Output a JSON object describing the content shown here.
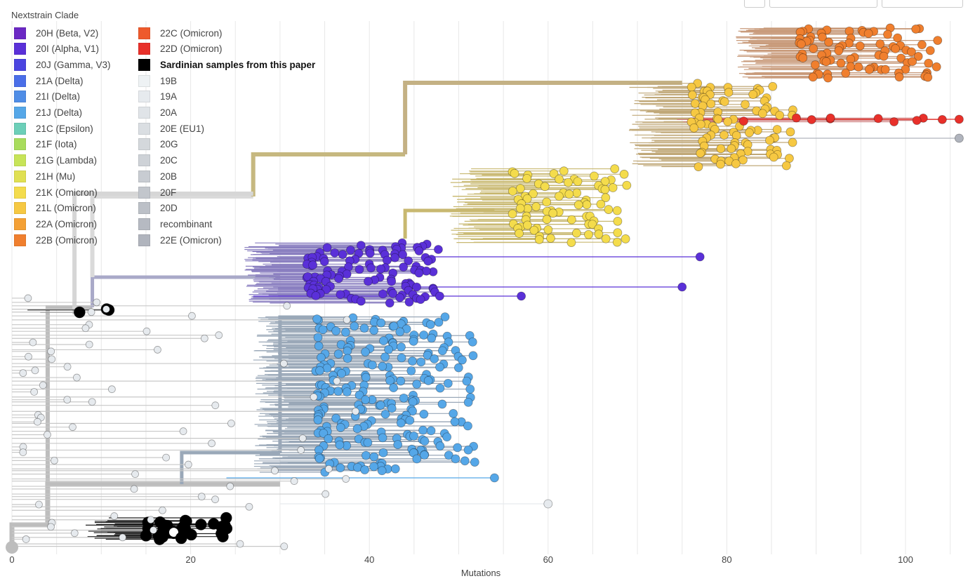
{
  "legend": {
    "title": "Nextstrain Clade",
    "items": [
      {
        "label": "20H (Beta, V2)",
        "color": "#6b28c4"
      },
      {
        "label": "20I (Alpha, V1)",
        "color": "#5a30d8"
      },
      {
        "label": "20J (Gamma, V3)",
        "color": "#4a44e0"
      },
      {
        "label": "21A (Delta)",
        "color": "#4a6ee8"
      },
      {
        "label": "21I (Delta)",
        "color": "#4f8de6"
      },
      {
        "label": "21J (Delta)",
        "color": "#55a7e8"
      },
      {
        "label": "21C (Epsilon)",
        "color": "#6ccfb8"
      },
      {
        "label": "21F (Iota)",
        "color": "#a8dc5c"
      },
      {
        "label": "21G (Lambda)",
        "color": "#c7e458"
      },
      {
        "label": "21H (Mu)",
        "color": "#e0e052"
      },
      {
        "label": "21K (Omicron)",
        "color": "#f4dc4c"
      },
      {
        "label": "21L (Omicron)",
        "color": "#f6c842"
      },
      {
        "label": "22A (Omicron)",
        "color": "#f4a034"
      },
      {
        "label": "22B (Omicron)",
        "color": "#f07f2e"
      },
      {
        "label": "22C (Omicron)",
        "color": "#ee5a2c"
      },
      {
        "label": "22D (Omicron)",
        "color": "#e8302a"
      },
      {
        "label": "Sardinian samples from this paper",
        "color": "#000000",
        "bold": true
      },
      {
        "label": "19B",
        "color": "#eef2f4"
      },
      {
        "label": "19A",
        "color": "#e6eaee"
      },
      {
        "label": "20A",
        "color": "#e0e4e8"
      },
      {
        "label": "20E (EU1)",
        "color": "#dadee2"
      },
      {
        "label": "20G",
        "color": "#d4d8dc"
      },
      {
        "label": "20C",
        "color": "#ced2d7"
      },
      {
        "label": "20B",
        "color": "#c8ccd2"
      },
      {
        "label": "20F",
        "color": "#c2c6cc"
      },
      {
        "label": "20D",
        "color": "#bcc0c7"
      },
      {
        "label": "recombinant",
        "color": "#b6bac2"
      },
      {
        "label": "22E (Omicron)",
        "color": "#b0b4bd"
      }
    ]
  },
  "chart_data": {
    "type": "scatter",
    "subtype": "phylogenetic-tree",
    "title": "",
    "xlabel": "Mutations",
    "ylabel": "",
    "xlim": [
      0,
      107
    ],
    "xticks": [
      "0",
      "20",
      "40",
      "60",
      "80",
      "100"
    ],
    "grid": true,
    "legend_position": "top-left",
    "clusters": [
      {
        "clade": "Sardinian samples from this paper",
        "x_range": [
          15,
          25
        ],
        "n": 30
      },
      {
        "clade": "Sardinian samples from this paper",
        "x_range": [
          7,
          11
        ],
        "n": 3
      },
      {
        "clade": "20I (Alpha, V1)",
        "x_range": [
          33,
          48
        ],
        "n": 110
      },
      {
        "clade": "21J (Delta)",
        "x_range": [
          34,
          52
        ],
        "n": 230
      },
      {
        "clade": "21K (Omicron)",
        "x_range": [
          56,
          69
        ],
        "n": 80
      },
      {
        "clade": "21L (Omicron)",
        "x_range": [
          76,
          88
        ],
        "n": 90
      },
      {
        "clade": "22B (Omicron)",
        "x_range": [
          88,
          104
        ],
        "n": 80
      },
      {
        "clade": "22D (Omicron)",
        "x_range": [
          81,
          106
        ],
        "n": 10
      },
      {
        "clade": "19A",
        "x_range": [
          1,
          40
        ],
        "n": 70
      }
    ],
    "outliers": [
      {
        "clade": "20I (Alpha, V1)",
        "x": 77
      },
      {
        "clade": "20I (Alpha, V1)",
        "x": 75
      },
      {
        "clade": "20I (Alpha, V1)",
        "x": 57
      },
      {
        "clade": "21J (Delta)",
        "x": 54
      },
      {
        "clade": "19A",
        "x": 60
      },
      {
        "clade": "22D (Omicron)",
        "x": 106
      },
      {
        "clade": "22E (Omicron)",
        "x": 106
      }
    ]
  }
}
